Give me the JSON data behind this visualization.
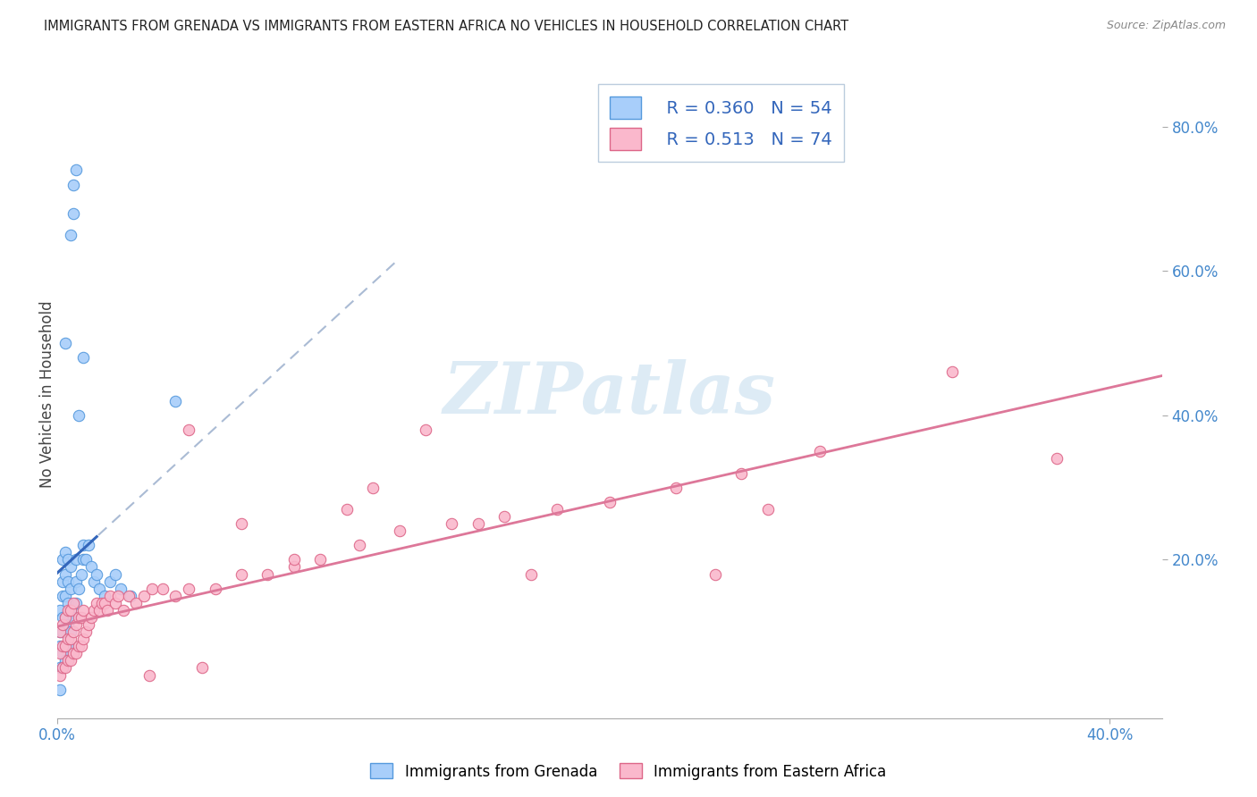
{
  "title": "IMMIGRANTS FROM GRENADA VS IMMIGRANTS FROM EASTERN AFRICA NO VEHICLES IN HOUSEHOLD CORRELATION CHART",
  "source": "Source: ZipAtlas.com",
  "ylabel": "No Vehicles in Household",
  "xlim": [
    0.0,
    0.42
  ],
  "ylim": [
    -0.02,
    0.88
  ],
  "R_grenada": 0.36,
  "N_grenada": 54,
  "R_eastern": 0.513,
  "N_eastern": 74,
  "color_grenada": "#A8CEFA",
  "color_eastern": "#FAB8CC",
  "edge_grenada": "#5599DD",
  "edge_eastern": "#DD6688",
  "line_grenada_solid": "#3366BB",
  "line_grenada_dashed": "#AABBD4",
  "line_eastern": "#DD7799",
  "watermark_text": "ZIPatlas",
  "grenada_x": [
    0.001,
    0.001,
    0.001,
    0.001,
    0.001,
    0.002,
    0.002,
    0.002,
    0.002,
    0.002,
    0.002,
    0.002,
    0.003,
    0.003,
    0.003,
    0.003,
    0.003,
    0.003,
    0.003,
    0.004,
    0.004,
    0.004,
    0.004,
    0.004,
    0.005,
    0.005,
    0.005,
    0.005,
    0.005,
    0.006,
    0.006,
    0.006,
    0.007,
    0.007,
    0.007,
    0.007,
    0.008,
    0.008,
    0.009,
    0.01,
    0.01,
    0.01,
    0.011,
    0.012,
    0.013,
    0.014,
    0.015,
    0.016,
    0.018,
    0.02,
    0.022,
    0.024,
    0.028,
    0.045
  ],
  "grenada_y": [
    0.02,
    0.05,
    0.08,
    0.1,
    0.13,
    0.05,
    0.07,
    0.1,
    0.12,
    0.15,
    0.17,
    0.2,
    0.06,
    0.08,
    0.12,
    0.15,
    0.18,
    0.21,
    0.5,
    0.08,
    0.11,
    0.14,
    0.17,
    0.2,
    0.1,
    0.13,
    0.16,
    0.19,
    0.65,
    0.12,
    0.68,
    0.72,
    0.14,
    0.17,
    0.2,
    0.74,
    0.16,
    0.4,
    0.18,
    0.2,
    0.22,
    0.48,
    0.2,
    0.22,
    0.19,
    0.17,
    0.18,
    0.16,
    0.15,
    0.17,
    0.18,
    0.16,
    0.15,
    0.42
  ],
  "eastern_x": [
    0.001,
    0.001,
    0.001,
    0.002,
    0.002,
    0.002,
    0.003,
    0.003,
    0.003,
    0.004,
    0.004,
    0.004,
    0.005,
    0.005,
    0.005,
    0.006,
    0.006,
    0.006,
    0.007,
    0.007,
    0.008,
    0.008,
    0.009,
    0.009,
    0.01,
    0.01,
    0.011,
    0.012,
    0.013,
    0.014,
    0.015,
    0.016,
    0.017,
    0.018,
    0.019,
    0.02,
    0.022,
    0.023,
    0.025,
    0.027,
    0.03,
    0.033,
    0.036,
    0.04,
    0.045,
    0.05,
    0.06,
    0.07,
    0.08,
    0.09,
    0.1,
    0.115,
    0.13,
    0.15,
    0.17,
    0.19,
    0.21,
    0.235,
    0.26,
    0.29,
    0.12,
    0.14,
    0.16,
    0.18,
    0.05,
    0.07,
    0.09,
    0.11,
    0.25,
    0.27,
    0.035,
    0.055,
    0.34,
    0.38
  ],
  "eastern_y": [
    0.04,
    0.07,
    0.1,
    0.05,
    0.08,
    0.11,
    0.05,
    0.08,
    0.12,
    0.06,
    0.09,
    0.13,
    0.06,
    0.09,
    0.13,
    0.07,
    0.1,
    0.14,
    0.07,
    0.11,
    0.08,
    0.12,
    0.08,
    0.12,
    0.09,
    0.13,
    0.1,
    0.11,
    0.12,
    0.13,
    0.14,
    0.13,
    0.14,
    0.14,
    0.13,
    0.15,
    0.14,
    0.15,
    0.13,
    0.15,
    0.14,
    0.15,
    0.16,
    0.16,
    0.15,
    0.16,
    0.16,
    0.18,
    0.18,
    0.19,
    0.2,
    0.22,
    0.24,
    0.25,
    0.26,
    0.27,
    0.28,
    0.3,
    0.32,
    0.35,
    0.3,
    0.38,
    0.25,
    0.18,
    0.38,
    0.25,
    0.2,
    0.27,
    0.18,
    0.27,
    0.04,
    0.05,
    0.46,
    0.34
  ]
}
